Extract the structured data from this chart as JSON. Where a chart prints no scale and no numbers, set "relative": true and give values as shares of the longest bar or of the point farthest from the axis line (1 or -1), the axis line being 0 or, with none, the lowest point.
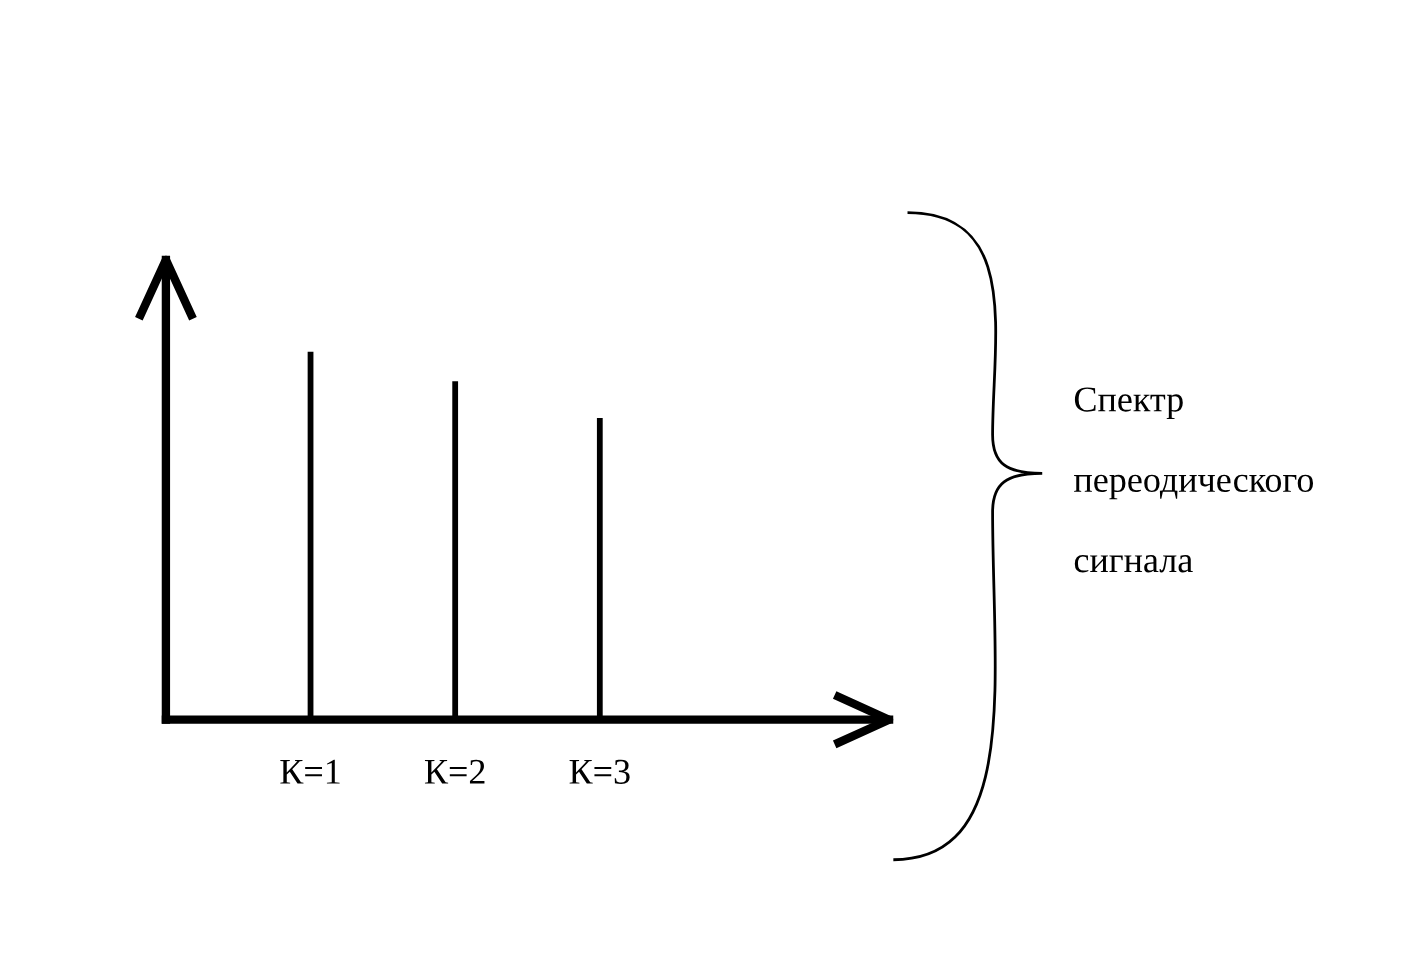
{
  "chart_data": {
    "type": "bar",
    "relative": true,
    "categories": [
      "К=1",
      "К=2",
      "К=3"
    ],
    "values": [
      1,
      0.92,
      0.82
    ],
    "color": "#000000",
    "annotations": [
      "Спектр\nпереодического\nсигнала"
    ],
    "grid": false,
    "legend": false
  }
}
